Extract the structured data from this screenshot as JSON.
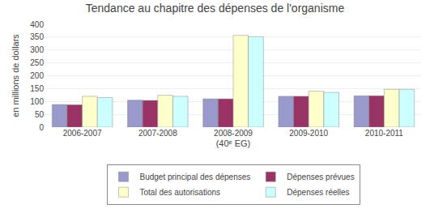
{
  "chart_data": {
    "type": "bar",
    "title": "Tendance au chapitre des dépenses de l'organisme",
    "xlabel": "(40ᵉ EG)",
    "ylabel": "en millions de dollars",
    "categories": [
      "2006-2007",
      "2007-2008",
      "2008-2009",
      "2009-2010",
      "2010-2011"
    ],
    "series": [
      {
        "name": "Budget principal des dépenses",
        "color": "#9999CC",
        "values": [
          88,
          105,
          110,
          120,
          122
        ]
      },
      {
        "name": "Dépenses prévues",
        "color": "#993366",
        "values": [
          87,
          104,
          110,
          120,
          122
        ]
      },
      {
        "name": "Total des autorisations",
        "color": "#FFFFCC",
        "values": [
          120,
          124,
          357,
          140,
          147
        ]
      },
      {
        "name": "Dépenses réelles",
        "color": "#CCFFFF",
        "values": [
          115,
          120,
          352,
          135,
          147
        ]
      }
    ],
    "ylim": [
      0,
      400
    ],
    "yticks": [
      0,
      50,
      100,
      150,
      200,
      250,
      300,
      350,
      400
    ],
    "grid": true,
    "legend": "bottom"
  }
}
